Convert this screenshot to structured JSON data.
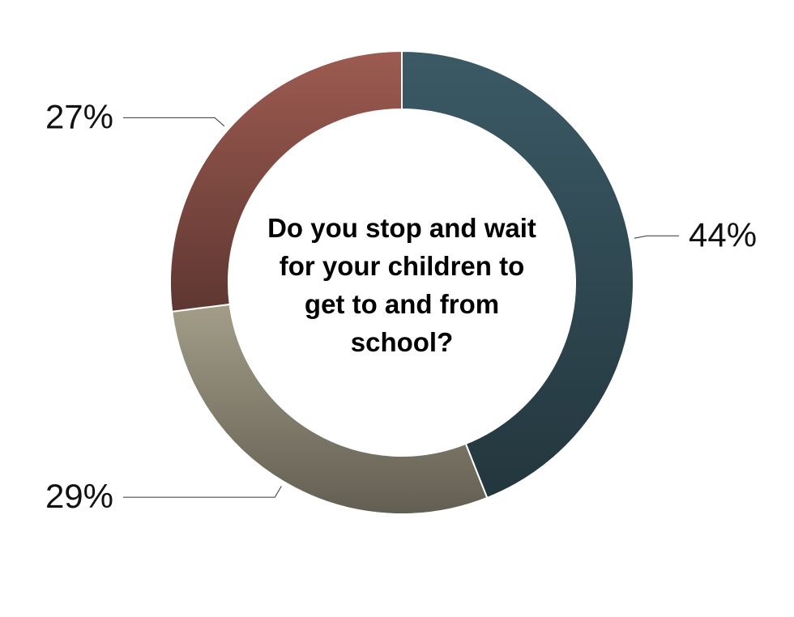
{
  "chart_data": {
    "type": "donut",
    "title": "Do you stop and wait for your children to get to and from school?",
    "values": [
      44,
      29,
      27
    ],
    "value_labels": [
      "44%",
      "29%",
      "27%"
    ],
    "colors": [
      "#3b5a66",
      "#a39d88",
      "#9d5b51"
    ]
  }
}
